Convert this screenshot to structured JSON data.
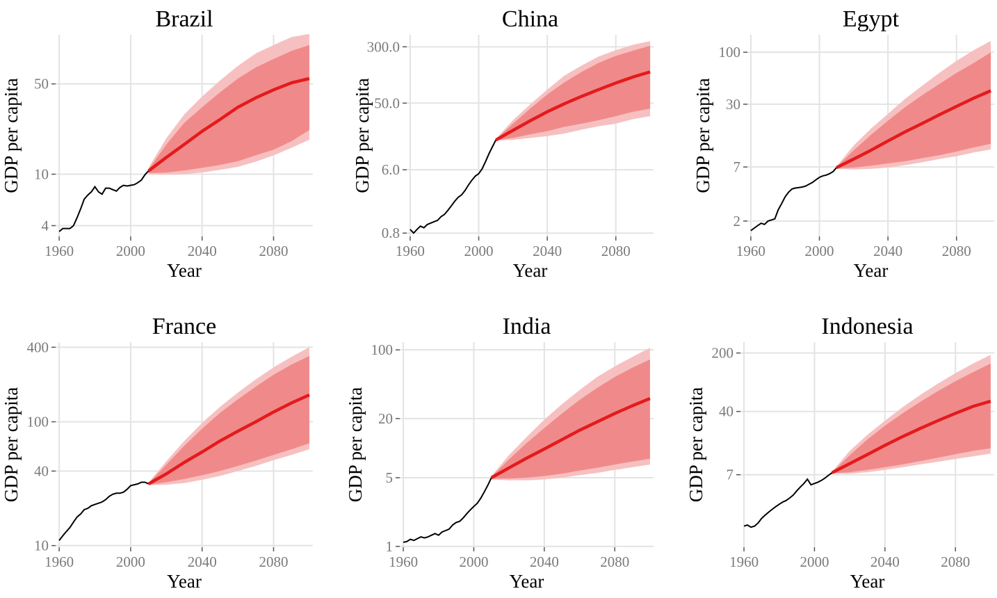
{
  "chart_data": [
    {
      "type": "line",
      "title": "Brazil",
      "xlabel": "Year",
      "ylabel": "GDP per capita",
      "yscale": "log",
      "xlim": [
        1958,
        2102
      ],
      "ylim": [
        3.3,
        120
      ],
      "xticks": [
        1960,
        2000,
        2040,
        2080
      ],
      "yticks": [
        4,
        10,
        50
      ],
      "historical": {
        "x": [
          1960,
          1962,
          1964,
          1966,
          1968,
          1970,
          1972,
          1974,
          1976,
          1978,
          1980,
          1982,
          1984,
          1986,
          1988,
          1990,
          1992,
          1994,
          1996,
          1998,
          2000,
          2002,
          2004,
          2006,
          2008,
          2010
        ],
        "y": [
          3.6,
          3.8,
          3.8,
          3.8,
          4.0,
          4.6,
          5.4,
          6.4,
          6.9,
          7.3,
          8.0,
          7.3,
          7.0,
          7.8,
          7.8,
          7.6,
          7.4,
          7.9,
          8.2,
          8.1,
          8.2,
          8.3,
          8.6,
          9.0,
          9.9,
          10.6
        ]
      },
      "projection": {
        "x": [
          2010,
          2020,
          2030,
          2040,
          2050,
          2060,
          2070,
          2080,
          2090,
          2100
        ],
        "median": [
          10.6,
          13.5,
          17.0,
          21.5,
          26.5,
          33.0,
          39.0,
          45.0,
          51.0,
          55.0
        ],
        "lower80": [
          10.2,
          10.3,
          10.7,
          11.2,
          11.8,
          12.6,
          14.0,
          15.5,
          18.0,
          22.0
        ],
        "upper80": [
          10.9,
          17.0,
          25.0,
          33.0,
          43.0,
          55.0,
          67.0,
          78.0,
          90.0,
          100.0
        ],
        "lower95": [
          10.0,
          9.9,
          10.0,
          10.3,
          10.8,
          11.4,
          12.5,
          14.0,
          16.0,
          18.5
        ],
        "upper95": [
          11.2,
          19.0,
          29.0,
          40.0,
          53.0,
          69.0,
          86.0,
          100.0,
          115.0,
          122.0
        ]
      }
    },
    {
      "type": "line",
      "title": "China",
      "xlabel": "Year",
      "ylabel": "GDP per capita",
      "yscale": "log",
      "xlim": [
        1958,
        2102
      ],
      "ylim": [
        0.72,
        440
      ],
      "xticks": [
        1960,
        2000,
        2040,
        2080
      ],
      "yticks": [
        0.8,
        6.0,
        50.0,
        300.0
      ],
      "ytick_labels": [
        "0.8",
        "6.0",
        "50.0",
        "300.0"
      ],
      "historical": {
        "x": [
          1960,
          1962,
          1964,
          1966,
          1968,
          1970,
          1972,
          1974,
          1976,
          1978,
          1980,
          1982,
          1984,
          1986,
          1988,
          1990,
          1992,
          1994,
          1996,
          1998,
          2000,
          2002,
          2004,
          2006,
          2008,
          2010
        ],
        "y": [
          0.9,
          0.8,
          0.9,
          1.0,
          0.95,
          1.05,
          1.1,
          1.15,
          1.2,
          1.35,
          1.45,
          1.65,
          1.9,
          2.2,
          2.5,
          2.7,
          3.1,
          3.7,
          4.3,
          4.9,
          5.3,
          6.2,
          7.8,
          10.0,
          12.5,
          15.5
        ]
      },
      "projection": {
        "x": [
          2010,
          2020,
          2030,
          2040,
          2050,
          2060,
          2070,
          2080,
          2090,
          2100
        ],
        "median": [
          15.5,
          21.0,
          28.5,
          38.0,
          49.0,
          62.0,
          77.0,
          95.0,
          115.0,
          135.0
        ],
        "lower80": [
          15.3,
          16.5,
          18.5,
          20.5,
          23.5,
          26.0,
          29.0,
          33.0,
          38.0,
          42.0
        ],
        "upper80": [
          15.8,
          26.0,
          42.0,
          66.0,
          97.0,
          135.0,
          180.0,
          225.0,
          265.0,
          310.0
        ],
        "lower95": [
          15.2,
          15.5,
          16.5,
          17.5,
          19.0,
          21.5,
          24.0,
          26.0,
          30.0,
          33.0
        ],
        "upper95": [
          16.0,
          29.0,
          48.0,
          77.0,
          120.0,
          165.0,
          220.0,
          270.0,
          320.0,
          360.0
        ]
      }
    },
    {
      "type": "line",
      "title": "Egypt",
      "xlabel": "Year",
      "ylabel": "GDP per capita",
      "yscale": "log",
      "xlim": [
        1958,
        2102
      ],
      "ylim": [
        1.4,
        150
      ],
      "xticks": [
        1960,
        2000,
        2040,
        2080
      ],
      "yticks": [
        2,
        7,
        30,
        100
      ],
      "historical": {
        "x": [
          1960,
          1962,
          1964,
          1966,
          1968,
          1970,
          1972,
          1974,
          1976,
          1978,
          1980,
          1982,
          1984,
          1986,
          1988,
          1990,
          1992,
          1994,
          1996,
          1998,
          2000,
          2002,
          2004,
          2006,
          2008,
          2010
        ],
        "y": [
          1.6,
          1.7,
          1.8,
          1.9,
          1.85,
          2.0,
          2.05,
          2.1,
          2.6,
          3.0,
          3.5,
          3.9,
          4.2,
          4.3,
          4.35,
          4.4,
          4.5,
          4.7,
          4.9,
          5.2,
          5.5,
          5.7,
          5.8,
          6.0,
          6.3,
          6.9
        ]
      },
      "projection": {
        "x": [
          2010,
          2020,
          2030,
          2040,
          2050,
          2060,
          2070,
          2080,
          2090,
          2100
        ],
        "median": [
          6.9,
          8.4,
          10.3,
          12.8,
          15.8,
          19.2,
          23.5,
          28.5,
          34.5,
          41.0
        ],
        "lower80": [
          6.8,
          6.9,
          7.2,
          7.6,
          8.0,
          8.6,
          9.2,
          10.0,
          11.0,
          12.0
        ],
        "upper80": [
          7.0,
          10.3,
          14.7,
          20.5,
          28.0,
          37.0,
          48.0,
          62.0,
          78.0,
          100.0
        ],
        "lower95": [
          6.7,
          6.6,
          6.7,
          6.9,
          7.3,
          7.8,
          8.4,
          9.0,
          9.8,
          10.5
        ],
        "upper95": [
          7.1,
          11.5,
          17.0,
          24.0,
          34.0,
          46.0,
          62.0,
          82.0,
          105.0,
          130.0
        ]
      }
    },
    {
      "type": "line",
      "title": "France",
      "xlabel": "Year",
      "ylabel": "GDP per capita",
      "yscale": "log",
      "xlim": [
        1958,
        2102
      ],
      "ylim": [
        9.7,
        440
      ],
      "xticks": [
        1960,
        2000,
        2040,
        2080
      ],
      "yticks": [
        10,
        40,
        100,
        400
      ],
      "historical": {
        "x": [
          1960,
          1962,
          1964,
          1966,
          1968,
          1970,
          1972,
          1974,
          1976,
          1978,
          1980,
          1982,
          1984,
          1986,
          1988,
          1990,
          1992,
          1994,
          1996,
          1998,
          2000,
          2002,
          2004,
          2006,
          2008,
          2010
        ],
        "y": [
          11.0,
          12.0,
          13.0,
          14.0,
          15.5,
          17.0,
          18.0,
          19.5,
          20.0,
          21.0,
          21.5,
          22.0,
          22.5,
          23.5,
          25.0,
          26.0,
          26.5,
          26.5,
          27.0,
          28.5,
          30.5,
          31.0,
          31.5,
          32.5,
          32.5,
          31.5
        ]
      },
      "projection": {
        "x": [
          2010,
          2020,
          2030,
          2040,
          2050,
          2060,
          2070,
          2080,
          2090,
          2100
        ],
        "median": [
          31.5,
          38.0,
          47.0,
          57.0,
          70.0,
          84.0,
          100.0,
          120.0,
          142.0,
          165.0
        ],
        "lower80": [
          31.0,
          32.5,
          34.5,
          37.0,
          40.0,
          44.0,
          48.5,
          54.0,
          60.0,
          67.0
        ],
        "upper80": [
          32.0,
          45.0,
          64.0,
          88.0,
          118.0,
          152.0,
          192.0,
          240.0,
          290.0,
          340.0
        ],
        "lower95": [
          30.8,
          31.0,
          32.0,
          34.0,
          36.5,
          40.0,
          44.0,
          49.0,
          54.0,
          60.0
        ],
        "upper95": [
          32.2,
          48.0,
          70.0,
          98.0,
          132.0,
          172.0,
          220.0,
          275.0,
          335.0,
          400.0
        ]
      }
    },
    {
      "type": "line",
      "title": "India",
      "xlabel": "Year",
      "ylabel": "GDP per capita",
      "yscale": "log",
      "xlim": [
        1958,
        2102
      ],
      "ylim": [
        0.98,
        120
      ],
      "xticks": [
        1960,
        2000,
        2040,
        2080
      ],
      "yticks": [
        1,
        5,
        20,
        100
      ],
      "historical": {
        "x": [
          1960,
          1962,
          1964,
          1966,
          1968,
          1970,
          1972,
          1974,
          1976,
          1978,
          1980,
          1982,
          1984,
          1986,
          1988,
          1990,
          1992,
          1994,
          1996,
          1998,
          2000,
          2002,
          2004,
          2006,
          2008,
          2010
        ],
        "y": [
          1.1,
          1.12,
          1.18,
          1.15,
          1.2,
          1.25,
          1.22,
          1.25,
          1.3,
          1.35,
          1.3,
          1.4,
          1.45,
          1.5,
          1.65,
          1.75,
          1.8,
          1.95,
          2.15,
          2.35,
          2.55,
          2.75,
          3.1,
          3.6,
          4.2,
          5.0
        ]
      },
      "projection": {
        "x": [
          2010,
          2020,
          2030,
          2040,
          2050,
          2060,
          2070,
          2080,
          2090,
          2100
        ],
        "median": [
          5.0,
          6.3,
          7.9,
          9.8,
          12.2,
          15.2,
          18.5,
          22.5,
          27.0,
          32.0
        ],
        "lower80": [
          4.9,
          4.9,
          5.0,
          5.2,
          5.5,
          5.9,
          6.3,
          6.8,
          7.3,
          7.8
        ],
        "upper80": [
          5.1,
          7.7,
          11.3,
          16.0,
          22.5,
          31.0,
          41.0,
          53.0,
          66.0,
          80.0
        ],
        "lower95": [
          4.8,
          4.7,
          4.7,
          4.8,
          5.0,
          5.3,
          5.6,
          6.0,
          6.4,
          6.8
        ],
        "upper95": [
          5.2,
          8.5,
          13.0,
          19.5,
          28.0,
          39.0,
          53.0,
          68.0,
          85.0,
          105.0
        ]
      }
    },
    {
      "type": "line",
      "title": "Indonesia",
      "xlabel": "Year",
      "ylabel": "GDP per capita",
      "yscale": "log",
      "xlim": [
        1958,
        2102
      ],
      "ylim": [
        0.95,
        270
      ],
      "xticks": [
        1960,
        2000,
        2040,
        2080
      ],
      "yticks": [
        7,
        40,
        200
      ],
      "historical": {
        "x": [
          1960,
          1962,
          1964,
          1966,
          1968,
          1970,
          1972,
          1974,
          1976,
          1978,
          1980,
          1982,
          1984,
          1986,
          1988,
          1990,
          1992,
          1994,
          1996,
          1998,
          2000,
          2002,
          2004,
          2006,
          2008,
          2010
        ],
        "y": [
          1.7,
          1.75,
          1.65,
          1.7,
          1.85,
          2.1,
          2.3,
          2.5,
          2.7,
          2.9,
          3.1,
          3.3,
          3.45,
          3.7,
          4.0,
          4.5,
          5.0,
          5.5,
          6.2,
          5.3,
          5.5,
          5.7,
          6.0,
          6.4,
          6.9,
          7.4
        ]
      },
      "projection": {
        "x": [
          2010,
          2020,
          2030,
          2040,
          2050,
          2060,
          2070,
          2080,
          2090,
          2100
        ],
        "median": [
          7.4,
          9.5,
          12.2,
          15.7,
          20.0,
          25.0,
          31.0,
          38.0,
          46.0,
          53.0
        ],
        "lower80": [
          7.3,
          7.5,
          8.0,
          8.6,
          9.3,
          10.2,
          11.2,
          12.3,
          13.5,
          14.5
        ],
        "upper80": [
          7.5,
          12.0,
          18.5,
          27.0,
          38.0,
          52.0,
          70.0,
          92.0,
          118.0,
          150.0
        ],
        "lower95": [
          7.2,
          7.2,
          7.5,
          8.0,
          8.6,
          9.3,
          10.0,
          10.8,
          11.6,
          12.5
        ],
        "upper95": [
          7.6,
          13.5,
          21.0,
          31.0,
          45.0,
          63.0,
          86.0,
          115.0,
          150.0,
          190.0
        ]
      }
    }
  ],
  "colors": {
    "historical": "#000000",
    "median": "#e41a1c",
    "band80": "#f08a8a",
    "band95": "#f7c0c0",
    "grid": "#e3e3e3",
    "tick_text": "#7a7a7a"
  }
}
